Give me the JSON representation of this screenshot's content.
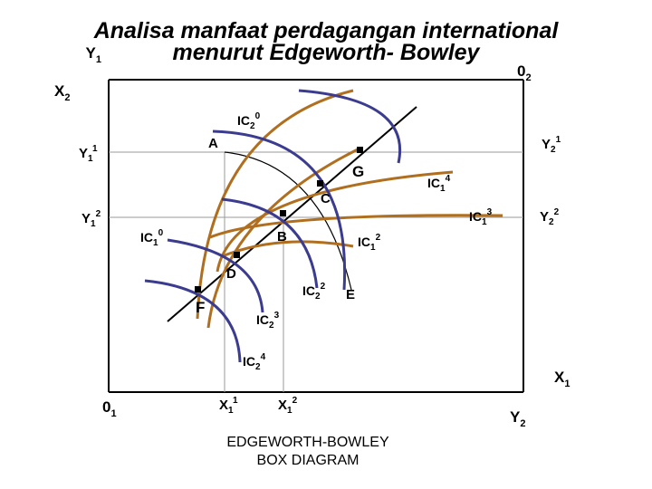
{
  "title": {
    "line1": "Analisa manfaat perdagangan international",
    "line2": "menurut Edgeworth- Bowley"
  },
  "caption": {
    "line1": "EDGEWORTH-BOWLEY",
    "line2": "BOX DIAGRAM"
  },
  "colors": {
    "ic_person1": "#b06f1f",
    "ic_person2": "#3b3b8f",
    "axes": "#000000",
    "guides": "#9a9a9a"
  },
  "labels": {
    "y1": {
      "base": "Y",
      "sub": "1",
      "sup": ""
    },
    "x2": {
      "base": "X",
      "sub": "2",
      "sup": ""
    },
    "o2": {
      "base": "0",
      "sub": "2",
      "sup": ""
    },
    "o1": {
      "base": "0",
      "sub": "1",
      "sup": ""
    },
    "x1": {
      "base": "X",
      "sub": "1",
      "sup": ""
    },
    "y2": {
      "base": "Y",
      "sub": "2",
      "sup": ""
    },
    "y1_1": {
      "base": "Y",
      "sub": "1",
      "sup": "1"
    },
    "y1_2": {
      "base": "Y",
      "sub": "1",
      "sup": "2"
    },
    "y2_1": {
      "base": "Y",
      "sub": "2",
      "sup": "1"
    },
    "y2_2": {
      "base": "Y",
      "sub": "2",
      "sup": "2"
    },
    "x1_1": {
      "base": "X",
      "sub": "1",
      "sup": "1"
    },
    "x1_2": {
      "base": "X",
      "sub": "1",
      "sup": "2"
    },
    "ic2_0": {
      "base": "IC",
      "sub": "2",
      "sup": "0"
    },
    "ic1_0": {
      "base": "IC",
      "sub": "1",
      "sup": "0"
    },
    "ic1_4": {
      "base": "IC",
      "sub": "1",
      "sup": "4"
    },
    "ic1_3": {
      "base": "IC",
      "sub": "1",
      "sup": "3"
    },
    "ic1_2": {
      "base": "IC",
      "sub": "1",
      "sup": "2"
    },
    "ic2_2": {
      "base": "IC",
      "sub": "2",
      "sup": "2"
    },
    "ic2_3": {
      "base": "IC",
      "sub": "2",
      "sup": "3"
    },
    "ic2_4": {
      "base": "IC",
      "sub": "2",
      "sup": "4"
    }
  },
  "points": {
    "a": "A",
    "g": "G",
    "c": "C",
    "b": "B",
    "d": "D",
    "f": "F",
    "e": "E"
  }
}
